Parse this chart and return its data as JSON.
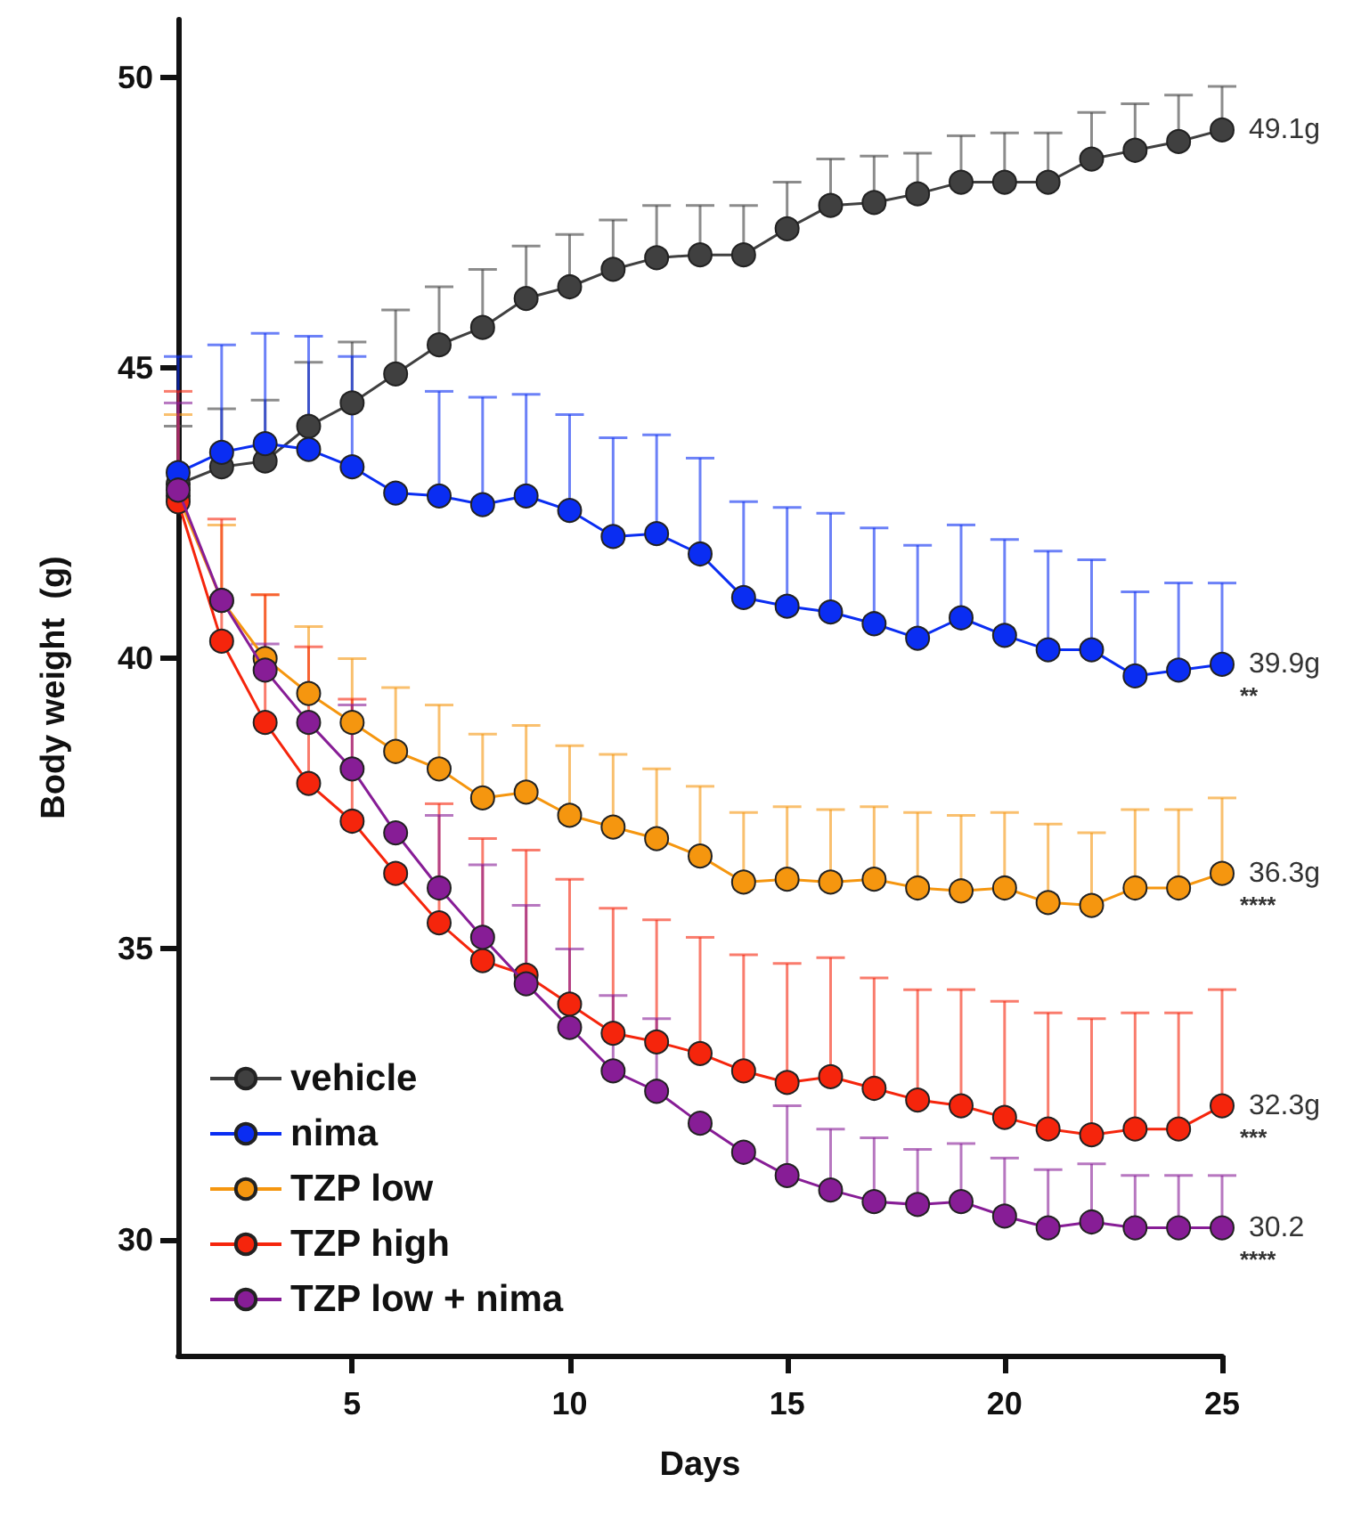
{
  "chart_data": {
    "type": "line",
    "xlabel": "Days",
    "ylabel": "Body weight  (g)",
    "x": [
      1,
      2,
      3,
      4,
      5,
      6,
      7,
      8,
      9,
      10,
      11,
      12,
      13,
      14,
      15,
      16,
      17,
      18,
      19,
      20,
      21,
      22,
      23,
      24,
      25
    ],
    "xlim": [
      1,
      25
    ],
    "xticks": [
      5,
      10,
      15,
      20,
      25
    ],
    "ylim": [
      28,
      51
    ],
    "yticks": [
      30,
      35,
      40,
      45,
      50
    ],
    "grid": false,
    "legend": "bottom left",
    "marker": "circle",
    "line_style": "solid",
    "series": [
      {
        "name": "vehicle",
        "color": "#404040",
        "value_labels": [
          null,
          null,
          null,
          null,
          null,
          null,
          null,
          null,
          null,
          null,
          null,
          null,
          null,
          null,
          null,
          null,
          null,
          null,
          null,
          null,
          null,
          null,
          null,
          null,
          "49.1g"
        ],
        "values": [
          43.0,
          43.3,
          43.4,
          44.0,
          44.4,
          44.9,
          45.4,
          45.7,
          46.2,
          46.4,
          46.7,
          46.9,
          46.95,
          46.95,
          47.4,
          47.8,
          47.85,
          48.0,
          48.2,
          48.2,
          48.2,
          48.6,
          48.75,
          48.9,
          49.1
        ],
        "errors": [
          [
            43.0,
            44.0
          ],
          [
            43.3,
            44.3
          ],
          [
            43.4,
            44.45
          ],
          [
            44.0,
            45.1
          ],
          [
            44.4,
            45.45
          ],
          [
            44.9,
            46.0
          ],
          [
            45.4,
            46.4
          ],
          [
            45.7,
            46.7
          ],
          [
            46.2,
            47.1
          ],
          [
            46.4,
            47.3
          ],
          [
            46.7,
            47.55
          ],
          [
            46.9,
            47.8
          ],
          [
            46.95,
            47.8
          ],
          [
            46.95,
            47.8
          ],
          [
            47.4,
            48.2
          ],
          [
            47.8,
            48.6
          ],
          [
            47.85,
            48.65
          ],
          [
            48.0,
            48.7
          ],
          [
            48.2,
            49.0
          ],
          [
            48.2,
            49.05
          ],
          [
            48.2,
            49.05
          ],
          [
            48.6,
            49.4
          ],
          [
            48.75,
            49.55
          ],
          [
            48.9,
            49.7
          ],
          [
            49.1,
            49.85
          ]
        ]
      },
      {
        "name": "nima",
        "color": "#0a2df2",
        "value_labels": [
          null,
          null,
          null,
          null,
          null,
          null,
          null,
          null,
          null,
          null,
          null,
          null,
          null,
          null,
          null,
          null,
          null,
          null,
          null,
          null,
          null,
          null,
          null,
          null,
          "39.9g"
        ],
        "values": [
          43.2,
          43.55,
          43.7,
          43.6,
          43.3,
          42.85,
          42.8,
          42.65,
          42.8,
          42.55,
          42.1,
          42.15,
          41.8,
          41.05,
          40.9,
          40.8,
          40.6,
          40.35,
          40.7,
          40.4,
          40.15,
          40.15,
          39.7,
          39.8,
          39.9
        ],
        "errors": [
          [
            43.2,
            45.2
          ],
          [
            43.55,
            45.4
          ],
          [
            43.7,
            45.6
          ],
          [
            43.6,
            45.55
          ],
          [
            43.3,
            45.2
          ],
          null,
          [
            42.8,
            44.6
          ],
          [
            42.65,
            44.5
          ],
          [
            42.8,
            44.55
          ],
          [
            42.55,
            44.2
          ],
          [
            42.1,
            43.8
          ],
          [
            42.15,
            43.85
          ],
          [
            41.8,
            43.45
          ],
          [
            41.05,
            42.7
          ],
          [
            40.9,
            42.6
          ],
          [
            40.8,
            42.5
          ],
          [
            40.6,
            42.25
          ],
          [
            40.35,
            41.95
          ],
          [
            40.7,
            42.3
          ],
          [
            40.4,
            42.05
          ],
          [
            40.15,
            41.85
          ],
          [
            40.15,
            41.7
          ],
          [
            39.7,
            41.15
          ],
          [
            39.8,
            41.3
          ],
          [
            39.9,
            41.3
          ]
        ]
      },
      {
        "name": "TZP low",
        "color": "#f5960f",
        "value_labels": [
          null,
          null,
          null,
          null,
          null,
          null,
          null,
          null,
          null,
          null,
          null,
          null,
          null,
          null,
          null,
          null,
          null,
          null,
          null,
          null,
          null,
          null,
          null,
          null,
          "36.3g"
        ],
        "values": [
          42.8,
          41.0,
          40.0,
          39.4,
          38.9,
          38.4,
          38.1,
          37.6,
          37.7,
          37.3,
          37.1,
          36.9,
          36.6,
          36.15,
          36.2,
          36.15,
          36.2,
          36.05,
          36.0,
          36.05,
          35.8,
          35.75,
          36.05,
          36.05,
          36.3
        ],
        "errors": [
          [
            42.8,
            44.2
          ],
          [
            41.0,
            42.3
          ],
          [
            40.0,
            41.1
          ],
          [
            39.4,
            40.55
          ],
          [
            38.9,
            40.0
          ],
          [
            38.4,
            39.5
          ],
          [
            38.1,
            39.2
          ],
          [
            37.6,
            38.7
          ],
          [
            37.7,
            38.85
          ],
          [
            37.3,
            38.5
          ],
          [
            37.1,
            38.35
          ],
          [
            36.9,
            38.1
          ],
          [
            36.6,
            37.8
          ],
          [
            36.15,
            37.35
          ],
          [
            36.2,
            37.45
          ],
          [
            36.15,
            37.4
          ],
          [
            36.2,
            37.45
          ],
          [
            36.05,
            37.35
          ],
          [
            36.0,
            37.3
          ],
          [
            36.05,
            37.35
          ],
          [
            35.8,
            37.15
          ],
          [
            35.75,
            37.0
          ],
          [
            36.05,
            37.4
          ],
          [
            36.05,
            37.4
          ],
          [
            36.3,
            37.6
          ]
        ]
      },
      {
        "name": "TZP high",
        "color": "#f5250c",
        "value_labels": [
          null,
          null,
          null,
          null,
          null,
          null,
          null,
          null,
          null,
          null,
          null,
          null,
          null,
          null,
          null,
          null,
          null,
          null,
          null,
          null,
          null,
          null,
          null,
          null,
          "32.3g"
        ],
        "values": [
          42.7,
          40.3,
          38.9,
          37.85,
          37.2,
          36.3,
          35.45,
          34.8,
          34.55,
          34.05,
          33.55,
          33.4,
          33.2,
          32.9,
          32.7,
          32.8,
          32.6,
          32.4,
          32.3,
          32.1,
          31.9,
          31.8,
          31.9,
          31.9,
          32.3
        ],
        "errors": [
          [
            42.7,
            44.6
          ],
          [
            40.3,
            42.4
          ],
          [
            38.9,
            41.1
          ],
          [
            37.85,
            40.2
          ],
          [
            37.2,
            39.3
          ],
          null,
          [
            35.45,
            37.5
          ],
          [
            34.8,
            36.9
          ],
          [
            34.55,
            36.7
          ],
          [
            34.05,
            36.2
          ],
          [
            33.55,
            35.7
          ],
          [
            33.4,
            35.5
          ],
          [
            33.2,
            35.2
          ],
          [
            32.9,
            34.9
          ],
          [
            32.7,
            34.75
          ],
          [
            32.8,
            34.85
          ],
          [
            32.6,
            34.5
          ],
          [
            32.4,
            34.3
          ],
          [
            32.3,
            34.3
          ],
          [
            32.1,
            34.1
          ],
          [
            31.9,
            33.9
          ],
          [
            31.8,
            33.8
          ],
          [
            31.9,
            33.9
          ],
          [
            31.9,
            33.9
          ],
          [
            32.3,
            34.3
          ]
        ]
      },
      {
        "name": "TZP low + nima",
        "color": "#871d96",
        "value_labels": [
          null,
          null,
          null,
          null,
          null,
          null,
          null,
          null,
          null,
          null,
          null,
          null,
          null,
          null,
          null,
          null,
          null,
          null,
          null,
          null,
          null,
          null,
          null,
          null,
          "30.2"
        ],
        "values": [
          42.9,
          41.0,
          39.8,
          38.9,
          38.1,
          37.0,
          36.05,
          35.2,
          34.4,
          33.65,
          32.9,
          32.55,
          32.0,
          31.5,
          31.1,
          30.85,
          30.65,
          30.6,
          30.65,
          30.4,
          30.2,
          30.3,
          30.2,
          30.2,
          30.2
        ],
        "errors": [
          [
            42.9,
            44.4
          ],
          null,
          [
            39.8,
            40.25
          ],
          null,
          [
            38.1,
            39.2
          ],
          null,
          [
            36.05,
            37.3
          ],
          [
            35.2,
            36.45
          ],
          [
            34.4,
            35.75
          ],
          [
            33.65,
            35.0
          ],
          [
            32.9,
            34.2
          ],
          [
            32.55,
            33.8
          ],
          null,
          null,
          [
            31.1,
            32.3
          ],
          [
            30.85,
            31.9
          ],
          [
            30.65,
            31.75
          ],
          [
            30.6,
            31.55
          ],
          [
            30.65,
            31.65
          ],
          [
            30.4,
            31.4
          ],
          [
            30.2,
            31.2
          ],
          [
            30.3,
            31.3
          ],
          [
            30.2,
            31.1
          ],
          [
            30.2,
            31.1
          ],
          [
            30.2,
            31.1
          ]
        ]
      }
    ],
    "annotations": [
      "**",
      "****",
      "***",
      "****"
    ]
  }
}
